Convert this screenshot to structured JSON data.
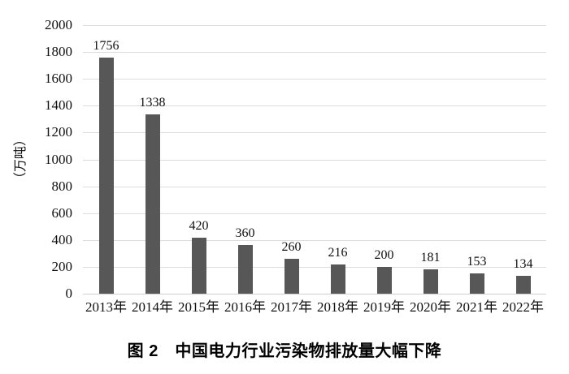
{
  "chart_data": {
    "type": "bar",
    "title": "图 2　中国电力行业污染物排放量大幅下降",
    "ylabel": "（万吨）",
    "xlabel": "",
    "categories": [
      "2013年",
      "2014年",
      "2015年",
      "2016年",
      "2017年",
      "2018年",
      "2019年",
      "2020年",
      "2021年",
      "2022年"
    ],
    "values": [
      1756,
      1338,
      420,
      360,
      260,
      216,
      200,
      181,
      153,
      134
    ],
    "data_labels": [
      "1756",
      "1338",
      "420",
      "360",
      "260",
      "216",
      "200",
      "181",
      "153",
      "134"
    ],
    "ylim": [
      0,
      2000
    ],
    "ytick_step": 200,
    "ytick_labels": [
      "0",
      "200",
      "400",
      "600",
      "800",
      "1000",
      "1200",
      "1400",
      "1600",
      "1800",
      "2000"
    ],
    "grid": true,
    "legend_position": "none",
    "bar_color": "#575757",
    "gridline_color": "#dcdcdc",
    "background_color": "#ffffff",
    "text_color": "#111111"
  }
}
